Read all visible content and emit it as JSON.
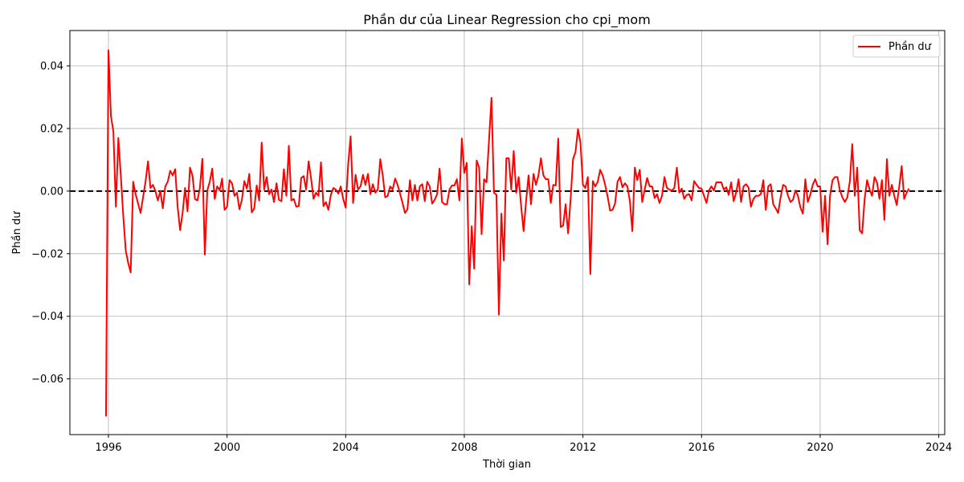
{
  "chart_data": {
    "type": "line",
    "title": "Phần dư của Linear Regression cho cpi_mom",
    "xlabel": "Thời gian",
    "ylabel": "Phần dư",
    "xlim": [
      1994.7,
      2024.2
    ],
    "ylim": [
      -0.0778,
      0.0513
    ],
    "x_ticks": [
      1996,
      2000,
      2004,
      2008,
      2012,
      2016,
      2020,
      2024
    ],
    "y_ticks": [
      -0.06,
      -0.04,
      -0.02,
      0.0,
      0.02,
      0.04
    ],
    "y_tick_labels": [
      "−0.06",
      "−0.04",
      "−0.02",
      "0.00",
      "0.02",
      "0.04"
    ],
    "grid": true,
    "legend_position": "top-right",
    "reference_line": {
      "y": 0.0,
      "style": "dashed",
      "color": "#000000"
    },
    "series": [
      {
        "name": "Phần dư",
        "color": "#ff0000",
        "x_start": 1995.917,
        "x_step": 0.08333,
        "values": [
          -0.072,
          0.045,
          0.024,
          0.019,
          -0.005,
          0.017,
          0.005,
          -0.008,
          -0.019,
          -0.023,
          -0.026,
          0.003,
          -0.001,
          -0.004,
          -0.007,
          -0.002,
          0.003,
          0.0095,
          0.001,
          0.002,
          0.0,
          -0.003,
          0.0,
          -0.0055,
          0.0015,
          0.003,
          0.0065,
          0.005,
          0.007,
          -0.005,
          -0.0125,
          -0.007,
          0.001,
          -0.0065,
          0.0075,
          0.005,
          -0.0025,
          -0.003,
          0.001,
          0.0103,
          -0.0203,
          0.0002,
          0.003,
          0.0072,
          -0.0025,
          0.0015,
          0.0003,
          0.004,
          -0.006,
          -0.005,
          0.0035,
          0.0025,
          -0.0015,
          -0.0005,
          -0.0058,
          -0.0028,
          0.0032,
          0.0008,
          0.0055,
          -0.0068,
          -0.0055,
          0.0018,
          -0.003,
          0.0155,
          0.0005,
          0.0045,
          -0.001,
          0.0005,
          -0.0035,
          0.0025,
          -0.0028,
          -0.0032,
          0.007,
          -0.0015,
          0.0145,
          -0.003,
          -0.0025,
          -0.005,
          -0.0048,
          0.0042,
          0.0048,
          0.0005,
          0.0095,
          0.004,
          -0.0025,
          -0.0005,
          -0.0015,
          0.0092,
          -0.0048,
          -0.0035,
          -0.006,
          -0.0012,
          0.001,
          0.0005,
          -0.0008,
          0.0015,
          -0.0025,
          -0.0053,
          0.0085,
          0.0175,
          -0.0038,
          0.0052,
          0.0005,
          0.0015,
          0.0052,
          0.002,
          0.0055,
          -0.001,
          0.0022,
          -0.0005,
          0.0005,
          0.0102,
          0.005,
          -0.002,
          -0.0015,
          0.0015,
          0.0005,
          0.004,
          0.002,
          -0.0008,
          -0.0038,
          -0.007,
          -0.0058,
          0.0035,
          -0.003,
          0.002,
          -0.003,
          0.0015,
          0.0022,
          -0.0032,
          0.003,
          0.0015,
          -0.004,
          -0.0028,
          -0.001,
          0.0072,
          -0.0035,
          -0.0042,
          -0.0042,
          0.0005,
          0.0018,
          0.0018,
          0.0038,
          -0.003,
          0.0168,
          0.0058,
          0.009,
          -0.0298,
          -0.0112,
          -0.0248,
          0.0098,
          0.0075,
          -0.0138,
          0.0038,
          0.0028,
          0.0162,
          0.0298,
          -0.0005,
          -0.0012,
          -0.0395,
          -0.0072,
          -0.0222,
          0.0105,
          0.0105,
          0.0005,
          0.0128,
          -0.0005,
          0.0045,
          -0.0048,
          -0.0128,
          -0.0032,
          0.005,
          -0.0042,
          0.0055,
          0.002,
          0.005,
          0.0105,
          0.005,
          0.0038,
          0.0038,
          -0.0038,
          0.002,
          0.0018,
          0.0168,
          -0.0115,
          -0.011,
          -0.0042,
          -0.0135,
          -0.0028,
          0.0102,
          0.0125,
          0.0198,
          0.0155,
          0.002,
          0.001,
          0.0045,
          -0.0265,
          0.0032,
          0.0015,
          0.003,
          0.0068,
          0.005,
          0.002,
          -0.0018,
          -0.0062,
          -0.006,
          -0.004,
          0.003,
          0.0045,
          0.0012,
          0.0025,
          0.0015,
          -0.0032,
          -0.0128,
          0.0075,
          0.0035,
          0.0068,
          -0.0035,
          0.0005,
          0.0042,
          0.0015,
          0.0015,
          -0.0022,
          -0.001,
          -0.0038,
          -0.0015,
          0.0045,
          0.001,
          0.0005,
          0.0002,
          0.001,
          0.0075,
          -0.0005,
          0.0008,
          -0.0025,
          -0.0012,
          -0.001,
          -0.003,
          0.0032,
          0.002,
          0.001,
          0.0008,
          -0.0015,
          -0.0038,
          0.0002,
          0.0015,
          0.0002,
          0.0028,
          0.0028,
          0.0028,
          0.0005,
          0.0012,
          -0.0012,
          0.0028,
          -0.0032,
          -0.0005,
          0.0038,
          -0.0035,
          0.0015,
          0.0022,
          0.0012,
          -0.005,
          -0.0025,
          -0.0015,
          -0.0015,
          -0.001,
          0.0035,
          -0.006,
          0.0015,
          0.0022,
          -0.0042,
          -0.0055,
          -0.007,
          -0.002,
          0.002,
          0.0015,
          -0.0015,
          -0.0035,
          -0.0028,
          0.0002,
          -0.0015,
          -0.0052,
          -0.0072,
          0.0038,
          -0.0035,
          -0.0012,
          0.002,
          0.0038,
          0.0015,
          0.0015,
          -0.013,
          -0.0015,
          -0.017,
          -0.0015,
          0.0035,
          0.0045,
          0.0045,
          0.0002,
          -0.002,
          -0.0035,
          -0.002,
          0.003,
          0.015,
          -0.0015,
          0.0075,
          -0.0125,
          -0.0135,
          -0.0025,
          0.0035,
          0.0005,
          -0.0015,
          0.0045,
          0.0028,
          -0.0025,
          0.0035,
          -0.0092,
          0.0102,
          -0.0015,
          0.002,
          -0.0015,
          -0.0045,
          0.0015,
          0.008,
          -0.0025,
          -0.0005,
          0.0008
        ]
      }
    ]
  }
}
